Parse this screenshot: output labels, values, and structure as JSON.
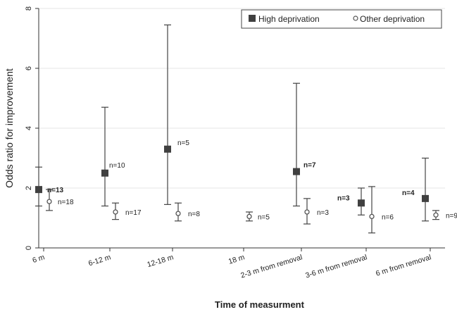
{
  "chart_data": {
    "type": "scatter",
    "subtype": "odds-ratio-with-error-bars",
    "title": "",
    "xlabel": "Time of measurment",
    "ylabel": "Odds ratio for improvement",
    "ylim": [
      0,
      8
    ],
    "yticks": [
      0,
      2,
      4,
      6,
      8
    ],
    "grid": true,
    "legend_position": "top-right",
    "categories": [
      "6 m",
      "6-12 m",
      "12-18 m",
      "18 m",
      "2-3 m from removal",
      "3-6 m from removal",
      "6 m from removal"
    ],
    "series": [
      {
        "name": "High deprivation",
        "marker": "filled-square",
        "color": "#404040",
        "points": [
          {
            "category": "6 m",
            "y": 1.95,
            "lower": 1.4,
            "upper": 2.7,
            "n_label": "n=13"
          },
          {
            "category": "6-12 m",
            "y": 2.5,
            "lower": 1.4,
            "upper": 4.7,
            "n_label": "n=10"
          },
          {
            "category": "12-18 m",
            "y": 3.3,
            "lower": 1.45,
            "upper": 7.45,
            "n_label": "n=5"
          },
          {
            "category": "2-3 m from removal",
            "y": 2.55,
            "lower": 1.4,
            "upper": 5.5,
            "n_label": "n=7"
          },
          {
            "category": "3-6 m from removal",
            "y": 1.5,
            "lower": 1.1,
            "upper": 2.0,
            "n_label": "n=3"
          },
          {
            "category": "6 m from removal",
            "y": 1.65,
            "lower": 0.9,
            "upper": 3.0,
            "n_label": "n=4"
          }
        ]
      },
      {
        "name": "Other deprivation",
        "marker": "hollow-circle",
        "color": "#555555",
        "points": [
          {
            "category": "6 m",
            "y": 1.55,
            "lower": 1.25,
            "upper": 1.95,
            "n_label": "n=18"
          },
          {
            "category": "6-12 m",
            "y": 1.2,
            "lower": 0.95,
            "upper": 1.5,
            "n_label": "n=17"
          },
          {
            "category": "12-18 m",
            "y": 1.15,
            "lower": 0.9,
            "upper": 1.5,
            "n_label": "n=8"
          },
          {
            "category": "18 m",
            "y": 1.05,
            "lower": 0.9,
            "upper": 1.2,
            "n_label": "n=5"
          },
          {
            "category": "2-3 m from removal",
            "y": 1.2,
            "lower": 0.8,
            "upper": 1.65,
            "n_label": "n=3"
          },
          {
            "category": "3-6 m from removal",
            "y": 1.05,
            "lower": 0.5,
            "upper": 2.05,
            "n_label": "n=6"
          },
          {
            "category": "6 m from removal",
            "y": 1.1,
            "lower": 0.95,
            "upper": 1.25,
            "n_label": "n=9"
          }
        ]
      }
    ]
  }
}
